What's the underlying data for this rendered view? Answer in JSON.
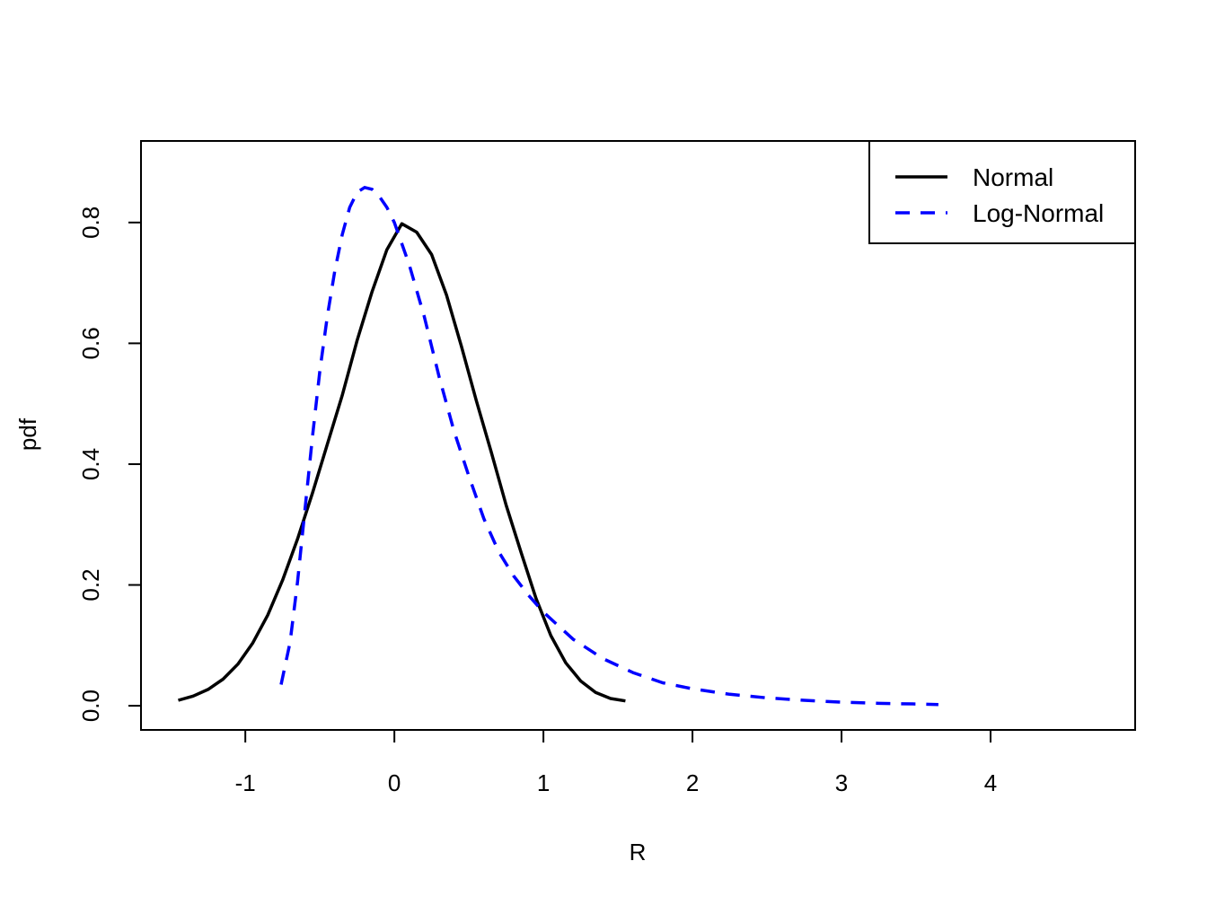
{
  "chart_data": {
    "type": "line",
    "title": "",
    "xlabel": "R",
    "ylabel": "pdf",
    "xlim": [
      -1.7,
      4.97
    ],
    "ylim": [
      -0.04,
      0.935
    ],
    "grid": false,
    "legend_position": "top-right",
    "x_ticks": [
      -1,
      0,
      1,
      2,
      3,
      4
    ],
    "x_tick_labels": [
      "-1",
      "0",
      "1",
      "2",
      "3",
      "4"
    ],
    "y_ticks": [
      0.0,
      0.2,
      0.4,
      0.6,
      0.8
    ],
    "y_tick_labels": [
      "0.0",
      "0.2",
      "0.4",
      "0.6",
      "0.8"
    ],
    "series": [
      {
        "name": "Normal",
        "color": "#000000",
        "dash": "solid",
        "x": [
          -1.45,
          -1.35,
          -1.25,
          -1.15,
          -1.05,
          -0.95,
          -0.85,
          -0.75,
          -0.65,
          -0.55,
          -0.45,
          -0.35,
          -0.25,
          -0.15,
          -0.05,
          0.05,
          0.15,
          0.25,
          0.35,
          0.45,
          0.55,
          0.65,
          0.75,
          0.85,
          0.95,
          1.05,
          1.15,
          1.25,
          1.35,
          1.45,
          1.55
        ],
        "y": [
          0.009,
          0.016,
          0.027,
          0.044,
          0.069,
          0.104,
          0.15,
          0.208,
          0.276,
          0.352,
          0.433,
          0.514,
          0.605,
          0.685,
          0.755,
          0.798,
          0.784,
          0.747,
          0.68,
          0.595,
          0.505,
          0.42,
          0.332,
          0.254,
          0.178,
          0.116,
          0.071,
          0.041,
          0.022,
          0.012,
          0.008
        ]
      },
      {
        "name": "Log-Normal",
        "color": "#0000ff",
        "dash": "dashed",
        "x": [
          -0.76,
          -0.7,
          -0.65,
          -0.6,
          -0.55,
          -0.5,
          -0.45,
          -0.4,
          -0.35,
          -0.3,
          -0.25,
          -0.2,
          -0.15,
          -0.1,
          -0.05,
          0.0,
          0.1,
          0.2,
          0.3,
          0.4,
          0.5,
          0.6,
          0.7,
          0.8,
          0.9,
          1.0,
          1.2,
          1.4,
          1.6,
          1.8,
          2.0,
          2.25,
          2.5,
          2.75,
          3.0,
          3.25,
          3.5,
          3.65
        ],
        "y": [
          0.035,
          0.105,
          0.205,
          0.325,
          0.445,
          0.555,
          0.645,
          0.72,
          0.78,
          0.825,
          0.85,
          0.858,
          0.855,
          0.843,
          0.825,
          0.8,
          0.73,
          0.645,
          0.545,
          0.455,
          0.38,
          0.31,
          0.255,
          0.215,
          0.183,
          0.155,
          0.11,
          0.078,
          0.055,
          0.038,
          0.028,
          0.019,
          0.013,
          0.009,
          0.006,
          0.004,
          0.003,
          0.002
        ]
      }
    ]
  }
}
